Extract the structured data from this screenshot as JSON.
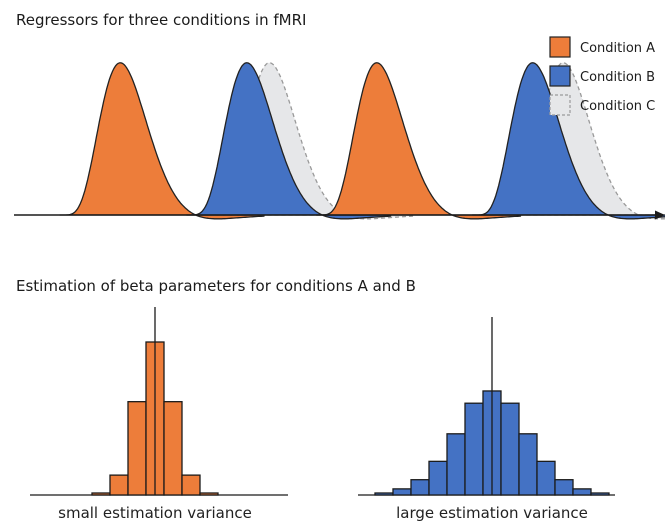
{
  "top_panel": {
    "title": "Regressors for three conditions in fMRI",
    "legend": [
      {
        "label": "Condition A",
        "color": "#ed7d3a",
        "border": "#222222",
        "style": "solid"
      },
      {
        "label": "Condition B",
        "color": "#4472c4",
        "border": "#222222",
        "style": "solid"
      },
      {
        "label": "Condition C",
        "color": "#e6e7e9",
        "border": "#9a9a9a",
        "style": "dashed"
      }
    ],
    "onsets": [
      {
        "condition": "A",
        "time": 0
      },
      {
        "condition": "C",
        "time": 1.32
      },
      {
        "condition": "B",
        "time": 1.12
      },
      {
        "condition": "A",
        "time": 2.27
      },
      {
        "condition": "C",
        "time": 3.92
      },
      {
        "condition": "B",
        "time": 3.65
      }
    ]
  },
  "bottom_panel": {
    "title": "Estimation of beta parameters for conditions A and B",
    "histograms": [
      {
        "condition": "A",
        "color": "#ed7d3a",
        "caption": "small estimation variance",
        "relative_heights": [
          0.01,
          0.13,
          0.61,
          1.0,
          0.61,
          0.13,
          0.01
        ]
      },
      {
        "condition": "B",
        "color": "#4472c4",
        "caption": "large estimation variance",
        "relative_heights": [
          0.01,
          0.04,
          0.1,
          0.22,
          0.4,
          0.6,
          0.68,
          0.6,
          0.4,
          0.22,
          0.1,
          0.04,
          0.01
        ]
      }
    ]
  }
}
